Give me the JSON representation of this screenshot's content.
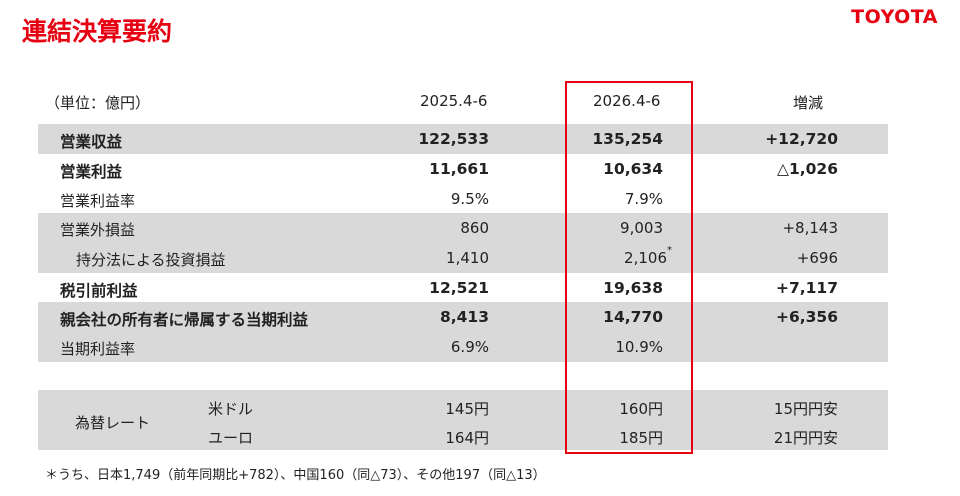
{
  "header": {
    "title": "連結決算要約",
    "logo": "TOYOTA"
  },
  "table": {
    "unit": "（単位：億円）",
    "columns": [
      "2025.4-6",
      "2026.4-6",
      "増減"
    ],
    "rows": [
      {
        "label": "営業収益",
        "values": [
          "122,533",
          "135,254",
          "+12,720"
        ]
      },
      {
        "label": "営業利益",
        "values": [
          "11,661",
          "10,634",
          "△1,026"
        ]
      },
      {
        "label": "営業利益率",
        "values": [
          "9.5%",
          "7.9%"
        ]
      },
      {
        "label": "営業外損益",
        "values": [
          "860",
          "9,003",
          "+8,143"
        ]
      },
      {
        "label": "持分法による投資損益",
        "values": [
          "1,410",
          "2,106",
          "+696"
        ],
        "note": "*"
      },
      {
        "label": "税引前利益",
        "values": [
          "12,521",
          "19,638",
          "+7,117"
        ]
      },
      {
        "label": "親会社の所有者に帰属する当期利益",
        "values": [
          "8,413",
          "14,770",
          "+6,356"
        ]
      },
      {
        "label": "当期利益率",
        "values": [
          "6.9%",
          "10.9%"
        ]
      }
    ],
    "exchange": {
      "label": "為替レート",
      "rows": [
        {
          "currency": "米ドル",
          "values": [
            "145円",
            "160円",
            "15円円安"
          ]
        },
        {
          "currency": "ユーロ",
          "values": [
            "164円",
            "185円",
            "21円円安"
          ]
        }
      ]
    }
  },
  "footnote": "＊うち、日本1,749（前年同期比+782）、中国160（同△73）、その他197（同△13）"
}
